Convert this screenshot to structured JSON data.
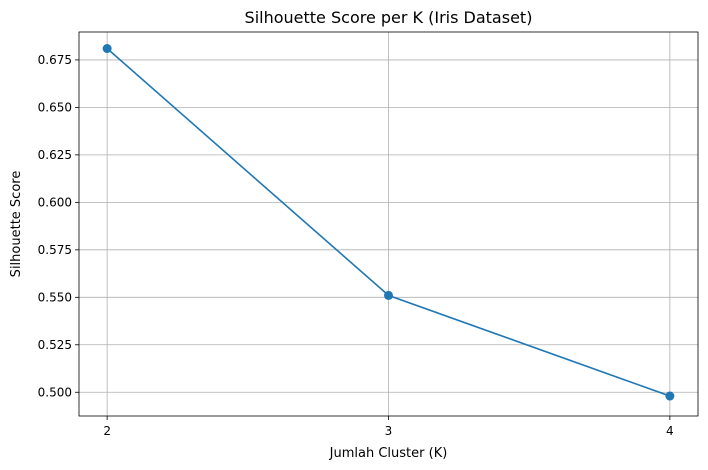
{
  "chart_data": {
    "type": "line",
    "title": "Silhouette Score per K (Iris Dataset)",
    "xlabel": "Jumlah Cluster (K)",
    "ylabel": "Silhouette Score",
    "x": [
      2,
      3,
      4
    ],
    "series": [
      {
        "values": [
          0.681,
          0.551,
          0.498
        ],
        "color": "#1f77b4",
        "marker": "circle"
      }
    ],
    "xticks": [
      "2",
      "3",
      "4"
    ],
    "yticks": [
      "0.500",
      "0.525",
      "0.550",
      "0.575",
      "0.600",
      "0.625",
      "0.650",
      "0.675"
    ],
    "xlim": [
      1.9,
      4.1
    ],
    "ylim": [
      0.4875,
      0.6897
    ],
    "grid": true
  }
}
